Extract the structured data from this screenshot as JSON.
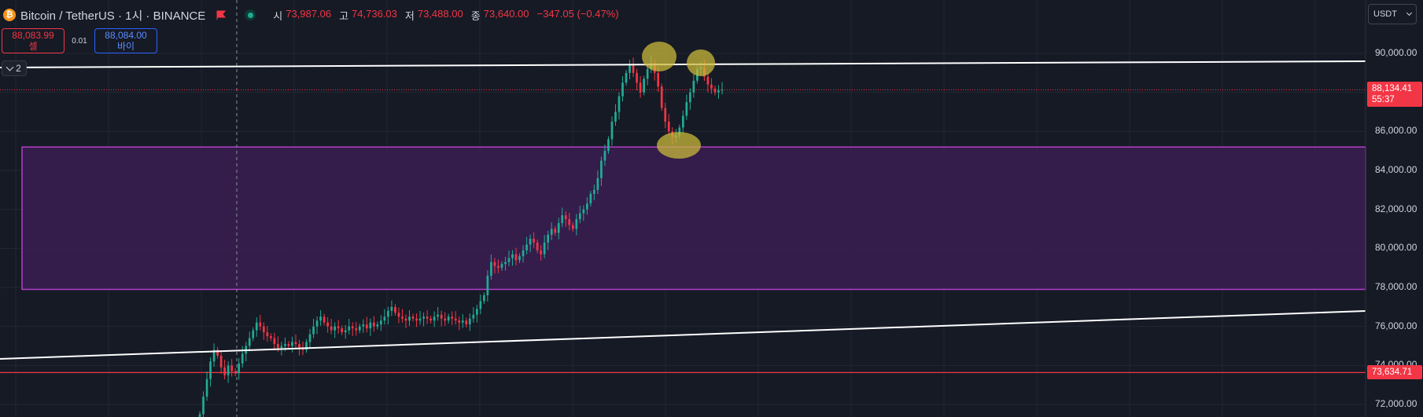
{
  "header": {
    "coin_icon_glyph": "₿",
    "symbol": "Bitcoin / TetherUS · 1시 · BINANCE",
    "ohlc": [
      {
        "key": "시",
        "value": "73,987.06"
      },
      {
        "key": "고",
        "value": "74,736.03"
      },
      {
        "key": "저",
        "value": "73,488.00"
      },
      {
        "key": "종",
        "value": "73,640.00"
      }
    ],
    "change": "−347.05 (−0.47%)"
  },
  "trade": {
    "sell_price": "88,083.99",
    "sell_label": "셀",
    "spread": "0.01",
    "buy_price": "88,084.00",
    "buy_label": "바이"
  },
  "indicator_toggle": {
    "count": "2"
  },
  "currency": {
    "selected": "USDT"
  },
  "price_axis": {
    "labels": [
      "90,000.00",
      "88,000.00",
      "86,000.00",
      "84,000.00",
      "82,000.00",
      "80,000.00",
      "78,000.00",
      "76,000.00",
      "74,000.00",
      "72,000.00"
    ],
    "current_price": "88,134.41",
    "countdown": "55:37",
    "line_price": "73,634.71"
  },
  "colors": {
    "up": "#22ab94",
    "down": "#f23645",
    "zone_fill": "#3a1f52",
    "zone_border": "#b23fc9",
    "highlight": "#c9b83a"
  },
  "chart_data": {
    "type": "candlestick",
    "ylim": [
      71000,
      91500
    ],
    "zone": {
      "low": 77900,
      "high": 85200
    },
    "horizontal_line": 73634.71,
    "current_price_line": 88134.41,
    "close_series": [
      71500,
      72400,
      73300,
      74200,
      74800,
      74500,
      73900,
      73500,
      74000,
      73700,
      73600,
      74100,
      74600,
      75000,
      75400,
      75800,
      76200,
      76000,
      75700,
      75500,
      75400,
      75100,
      74900,
      75000,
      75100,
      75000,
      75200,
      75100,
      74900,
      74800,
      75200,
      75600,
      76000,
      76300,
      76500,
      76200,
      76000,
      75800,
      76000,
      75900,
      75700,
      75800,
      76000,
      75900,
      75800,
      76000,
      76100,
      75900,
      76200,
      76000,
      76100,
      76300,
      76500,
      76800,
      77000,
      76700,
      76500,
      76400,
      76300,
      76500,
      76400,
      76300,
      76400,
      76500,
      76400,
      76300,
      76500,
      76600,
      76400,
      76300,
      76500,
      76400,
      76300,
      76200,
      76300,
      76100,
      76400,
      76600,
      76900,
      77300,
      77600,
      78600,
      79300,
      79100,
      79000,
      79200,
      79300,
      79500,
      79700,
      79400,
      79600,
      79900,
      80200,
      80500,
      80300,
      79900,
      79700,
      80300,
      80700,
      81000,
      80800,
      81300,
      81700,
      81500,
      81200,
      81000,
      81500,
      81800,
      82000,
      82300,
      82800,
      83000,
      83600,
      84500,
      85000,
      85600,
      86500,
      87000,
      87800,
      88500,
      89000,
      89400,
      89000,
      88500,
      88000,
      88700,
      89200,
      89500,
      89000,
      88300,
      87200,
      86500,
      86000,
      85700,
      85800,
      86200,
      86800,
      87500,
      88000,
      88600,
      89200,
      89300,
      88800,
      88400,
      88200,
      88000,
      88100,
      88134
    ]
  }
}
